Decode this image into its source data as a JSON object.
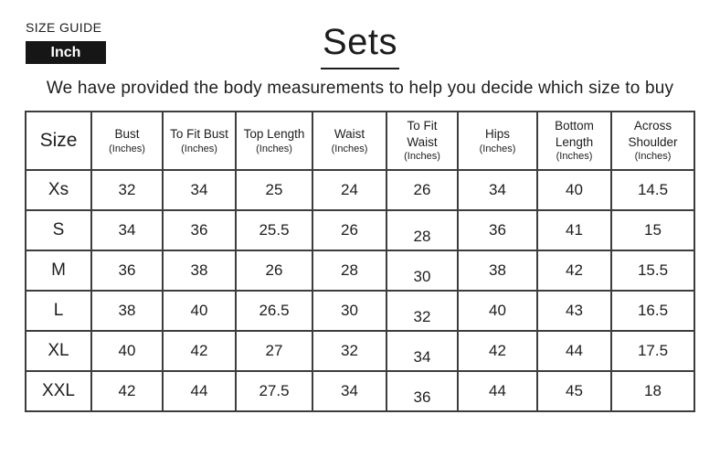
{
  "size_guide": {
    "label": "SIZE GUIDE",
    "unit": "Inch"
  },
  "header": {
    "title": "Sets",
    "subtitle": "We have provided the body measurements to help you decide which size to buy"
  },
  "table": {
    "columns": [
      {
        "label": "Size",
        "sublabel": ""
      },
      {
        "label": "Bust",
        "sublabel": "(Inches)"
      },
      {
        "label": "To Fit Bust",
        "sublabel": "(Inches)"
      },
      {
        "label": "Top Length",
        "sublabel": "(Inches)"
      },
      {
        "label": "Waist",
        "sublabel": "(Inches)"
      },
      {
        "label": "To Fit\nWaist",
        "sublabel": "(Inches)"
      },
      {
        "label": "Hips",
        "sublabel": "(Inches)"
      },
      {
        "label": "Bottom\nLength",
        "sublabel": "(Inches)"
      },
      {
        "label": "Across\nShoulder",
        "sublabel": "(Inches)"
      }
    ],
    "rows": [
      {
        "size": "Xs",
        "values": [
          "32",
          "34",
          "25",
          "24",
          "26",
          "34",
          "40",
          "14.5"
        ]
      },
      {
        "size": "S",
        "values": [
          "34",
          "36",
          "25.5",
          "26",
          "28",
          "36",
          "41",
          "15"
        ]
      },
      {
        "size": "M",
        "values": [
          "36",
          "38",
          "26",
          "28",
          "30",
          "38",
          "42",
          "15.5"
        ]
      },
      {
        "size": "L",
        "values": [
          "38",
          "40",
          "26.5",
          "30",
          "32",
          "40",
          "43",
          "16.5"
        ]
      },
      {
        "size": "XL",
        "values": [
          "40",
          "42",
          "27",
          "32",
          "34",
          "42",
          "44",
          "17.5"
        ]
      },
      {
        "size": "XXL",
        "values": [
          "42",
          "44",
          "27.5",
          "34",
          "36",
          "44",
          "45",
          "18"
        ]
      }
    ]
  },
  "colors": {
    "text": "#1d1d1d",
    "badge_bg": "#161616",
    "badge_text": "#ffffff",
    "border": "#3d3d3d",
    "background": "#ffffff"
  }
}
